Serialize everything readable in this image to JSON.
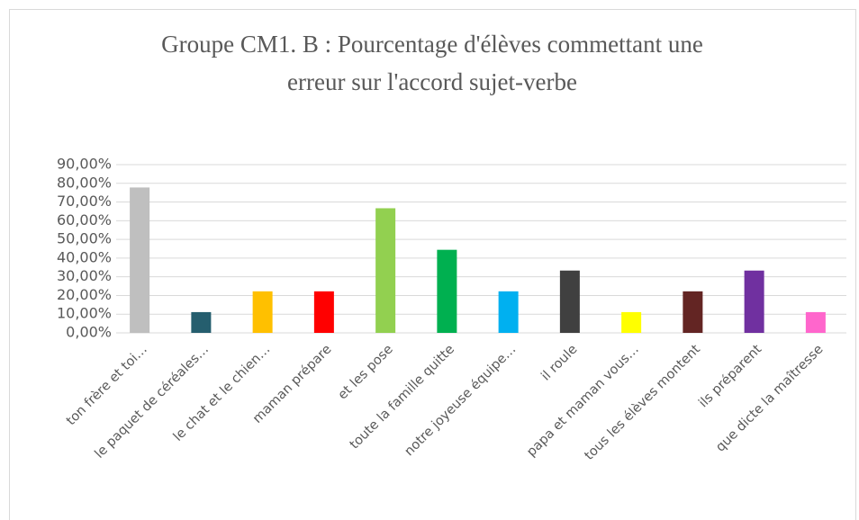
{
  "chart_data": {
    "type": "bar",
    "title": "Groupe CM1. B : Pourcentage d'élèves commettant une erreur sur l'accord sujet-verbe",
    "categories": [
      "ton frère et toi…",
      "le paquet de céréales…",
      "le chat et le chien…",
      "maman prépare",
      "et les pose",
      "toute la famille quitte",
      "notre joyeuse équipe…",
      "il roule",
      "papa et maman vous…",
      "tous les élèves montent",
      "ils préparent",
      "que dicte la maîtresse"
    ],
    "values": [
      77.78,
      11.11,
      22.22,
      22.22,
      66.67,
      44.44,
      22.22,
      33.33,
      11.11,
      22.22,
      33.33,
      11.11
    ],
    "colors": [
      "#bfbfbf",
      "#255e6e",
      "#ffc000",
      "#ff0000",
      "#92d050",
      "#00b050",
      "#00b0f0",
      "#404040",
      "#ffff00",
      "#632523",
      "#7030a0",
      "#ff66cc"
    ],
    "ylim": [
      0,
      90
    ],
    "yticks": [
      {
        "value": 0,
        "label": "0,00%"
      },
      {
        "value": 10,
        "label": "10,00%"
      },
      {
        "value": 20,
        "label": "20,00%"
      },
      {
        "value": 30,
        "label": "30,00%"
      },
      {
        "value": 40,
        "label": "40,00%"
      },
      {
        "value": 50,
        "label": "50,00%"
      },
      {
        "value": 60,
        "label": "60,00%"
      },
      {
        "value": 70,
        "label": "70,00%"
      },
      {
        "value": 80,
        "label": "80,00%"
      },
      {
        "value": 90,
        "label": "90,00%"
      }
    ],
    "grid": true
  }
}
